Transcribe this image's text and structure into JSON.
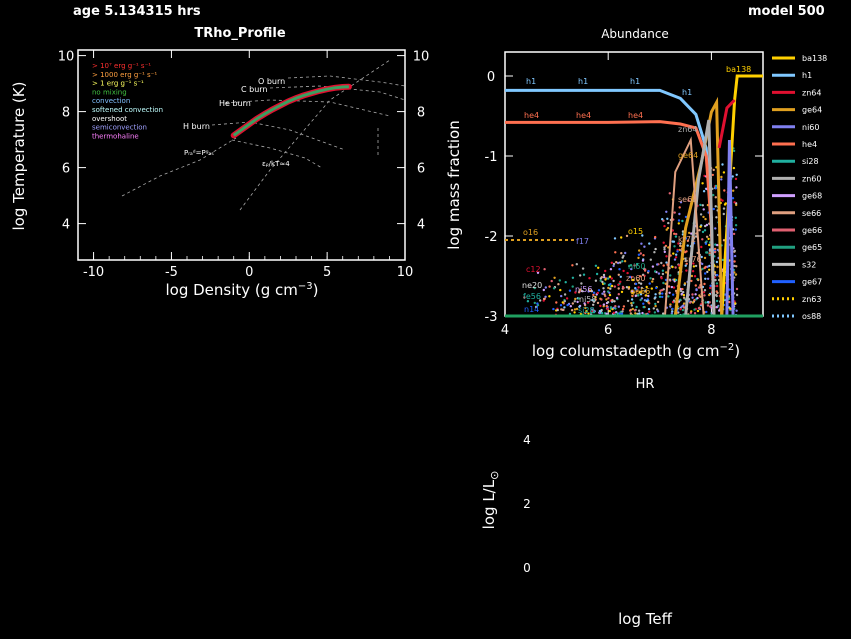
{
  "header": {
    "age": "age 5.134315 hrs",
    "model": "model 500"
  },
  "trho": {
    "title": "TRho_Profile",
    "xlabel": "log Density (g cm",
    "xlabel_sup": "−3",
    "xlabel_end": ")",
    "ylabel": "log Temperature (K)",
    "legend": [
      {
        "label": "> 10⁷ erg g⁻¹ s⁻¹",
        "color": "#ff3030"
      },
      {
        "label": "> 1000 erg g⁻¹ s⁻¹",
        "color": "#ffa040"
      },
      {
        "label": "> 1 erg g⁻¹ s⁻¹",
        "color": "#ffff60"
      },
      {
        "label": "no mixing",
        "color": "#40c040"
      },
      {
        "label": "convection",
        "color": "#80c0ff"
      },
      {
        "label": "softened convection",
        "color": "#c0ffff"
      },
      {
        "label": "overshoot",
        "color": "#ffffff"
      },
      {
        "label": "semiconvection",
        "color": "#a0a0ff"
      },
      {
        "label": "thermohaline",
        "color": "#ff80ff"
      }
    ],
    "burn_labels": [
      "O burn",
      "C burn",
      "He burn",
      "H burn"
    ],
    "pr_label": "Pᵣₐᵈ=Pᵍₐₛ",
    "eps_label": "εᵨ/kT≈4"
  },
  "abund": {
    "title": "Abundance",
    "xlabel": "log columstadepth (g cm",
    "xlabel_sup": "−2",
    "xlabel_end": ")",
    "ylabel": "log mass fraction",
    "curve_labels": [
      "h1",
      "h1",
      "h1",
      "he4",
      "he4",
      "he4",
      "ba138",
      "h1",
      "zn64",
      "ge64",
      "se68",
      "kr72",
      "o16",
      "c12",
      "ne20",
      "fe56",
      "n14",
      "si28",
      "f17",
      "o15",
      "ni56",
      "ni58",
      "ni60",
      "zn60",
      "ge66",
      "sr76"
    ],
    "legend": [
      {
        "name": "ba138",
        "color": "#ffd000",
        "style": "solid"
      },
      {
        "name": "h1",
        "color": "#80c8ff",
        "style": "solid"
      },
      {
        "name": "zn64",
        "color": "#e01030",
        "style": "solid"
      },
      {
        "name": "ge64",
        "color": "#e0a020",
        "style": "solid"
      },
      {
        "name": "ni60",
        "color": "#8080f0",
        "style": "solid"
      },
      {
        "name": "he4",
        "color": "#ff7050",
        "style": "solid"
      },
      {
        "name": "si28",
        "color": "#20b0a0",
        "style": "solid"
      },
      {
        "name": "zn60",
        "color": "#b0b0b0",
        "style": "solid"
      },
      {
        "name": "ge68",
        "color": "#d0a0ff",
        "style": "solid"
      },
      {
        "name": "se66",
        "color": "#e0a080",
        "style": "solid"
      },
      {
        "name": "ge66",
        "color": "#e06070",
        "style": "solid"
      },
      {
        "name": "ge65",
        "color": "#20a080",
        "style": "solid"
      },
      {
        "name": "s32",
        "color": "#c0c0c0",
        "style": "solid"
      },
      {
        "name": "ge67",
        "color": "#2060ff",
        "style": "solid"
      },
      {
        "name": "zn63",
        "color": "#ffd000",
        "style": "dotted"
      },
      {
        "name": "os88",
        "color": "#80c8ff",
        "style": "dotted"
      }
    ]
  },
  "hr": {
    "title": "HR",
    "xlabel": "log Teff",
    "ylabel": "log L/L",
    "ylabel_sub": "⊙",
    "yticks": [
      "4",
      "2",
      "0"
    ]
  },
  "chart_data": [
    {
      "type": "line",
      "title": "TRho_Profile",
      "xlabel": "log Density (g cm^-3)",
      "ylabel": "log Temperature (K)",
      "xlim": [
        -11,
        10
      ],
      "ylim": [
        2.7,
        10.2
      ],
      "xticks": [
        -10,
        -5,
        0,
        5,
        10
      ],
      "yticks": [
        4,
        6,
        8,
        10
      ],
      "series": [
        {
          "x": [
            -1.0,
            -0.5,
            0,
            0.5,
            1.0,
            1.5,
            2.0,
            2.5,
            3.0,
            3.5,
            4.0,
            4.5,
            5.0,
            5.5,
            6.0,
            6.4
          ],
          "y": [
            7.15,
            7.35,
            7.55,
            7.75,
            7.92,
            8.08,
            8.22,
            8.36,
            8.48,
            8.58,
            8.66,
            8.74,
            8.8,
            8.85,
            8.88,
            8.89
          ]
        }
      ]
    },
    {
      "type": "line",
      "title": "Abundance",
      "xlabel": "log columstadepth (g cm^-2)",
      "ylabel": "log mass fraction",
      "xlim": [
        4,
        9
      ],
      "ylim": [
        -3,
        0.3
      ],
      "xticks": [
        4,
        6,
        8
      ],
      "yticks": [
        0,
        -1,
        -2,
        -3
      ],
      "series": [
        {
          "name": "h1",
          "x": [
            4.0,
            5.0,
            6.0,
            7.0,
            7.4,
            7.7,
            7.9,
            8.0,
            8.05
          ],
          "y": [
            -0.18,
            -0.18,
            -0.18,
            -0.18,
            -0.28,
            -0.48,
            -0.9,
            -1.8,
            -3.0
          ]
        },
        {
          "name": "he4",
          "x": [
            4.0,
            5.0,
            6.0,
            7.0,
            7.4,
            7.7,
            7.9,
            8.0,
            8.05
          ],
          "y": [
            -0.58,
            -0.58,
            -0.58,
            -0.57,
            -0.6,
            -0.65,
            -1.0,
            -1.9,
            -3.0
          ]
        },
        {
          "name": "ba138",
          "x": [
            8.2,
            8.45,
            8.5,
            9.0
          ],
          "y": [
            -3.0,
            -0.3,
            0.0,
            0.0
          ]
        },
        {
          "name": "ge64",
          "x": [
            7.3,
            7.5,
            7.8,
            8.0,
            8.1,
            8.2
          ],
          "y": [
            -3.0,
            -1.9,
            -1.1,
            -0.45,
            -0.33,
            -3.0
          ]
        },
        {
          "name": "zn64",
          "x": [
            8.15,
            8.3,
            8.45
          ],
          "y": [
            -0.9,
            -0.4,
            -0.3
          ]
        }
      ]
    },
    {
      "type": "scatter",
      "title": "HR",
      "xlabel": "log Teff",
      "ylabel": "log L/L⊙",
      "yticks": [
        4,
        2,
        0
      ],
      "series": []
    }
  ]
}
